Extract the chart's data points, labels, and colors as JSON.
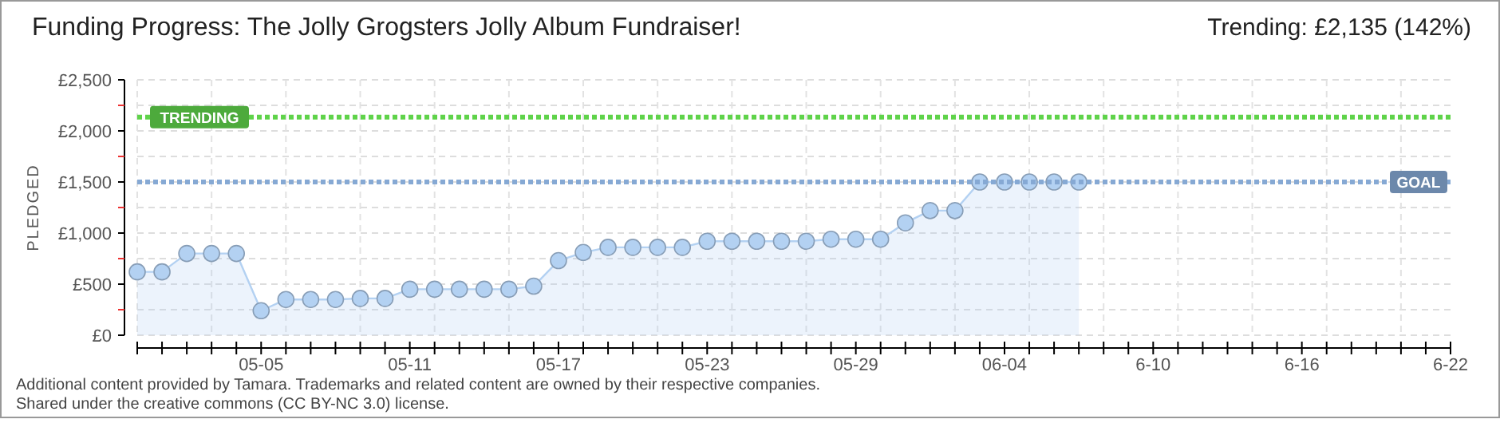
{
  "chart_data": {
    "type": "area",
    "title": "Funding Progress: The Jolly Grogsters Jolly Album Fundraiser!",
    "subtitle": "Trending:  £2,135 (142%)",
    "ylabel": "PLEDGED",
    "series": [
      {
        "color": "#b3d1f2",
        "x": [
          "--04-30",
          "--05-01",
          "--05-02",
          "--05-03",
          "--05-04",
          "--05-05",
          "--05-06",
          "--05-07",
          "--05-08",
          "--05-09",
          "--05-10",
          "--05-11",
          "--05-12",
          "--05-13",
          "--05-14",
          "--05-15",
          "--05-16",
          "--05-17",
          "--05-18",
          "--05-19",
          "--05-20",
          "--05-21",
          "--05-22",
          "--05-23",
          "--05-24",
          "--05-25",
          "--05-26",
          "--05-27",
          "--05-28",
          "--05-29",
          "--05-30",
          "--05-31",
          "--06-01",
          "--06-02",
          "--06-03",
          "--06-04",
          "--06-05",
          "--06-06",
          "--06-07"
        ],
        "values": [
          620,
          620,
          800,
          800,
          800,
          240,
          350,
          350,
          350,
          360,
          360,
          450,
          450,
          450,
          450,
          450,
          480,
          730,
          810,
          860,
          860,
          860,
          860,
          920,
          920,
          920,
          920,
          920,
          940,
          940,
          940,
          1100,
          1220,
          1220,
          1500,
          1500,
          1500,
          1500,
          1500
        ]
      }
    ],
    "marker": "circle",
    "grid": true,
    "xlim": [
      "--04-30",
      "--06-22"
    ],
    "xticks": [
      {
        "value": "--04-30",
        "label": null
      },
      {
        "value": "--05-01",
        "label": null
      },
      {
        "value": "--05-02",
        "label": null
      },
      {
        "value": "--05-03",
        "label": null
      },
      {
        "value": "--05-04",
        "label": null
      },
      {
        "value": "--05-05",
        "label": "05-05"
      },
      {
        "value": "--05-06",
        "label": null
      },
      {
        "value": "--05-07",
        "label": null
      },
      {
        "value": "--05-08",
        "label": null
      },
      {
        "value": "--05-09",
        "label": null
      },
      {
        "value": "--05-10",
        "label": null
      },
      {
        "value": "--05-11",
        "label": "05-11"
      },
      {
        "value": "--05-12",
        "label": null
      },
      {
        "value": "--05-13",
        "label": null
      },
      {
        "value": "--05-14",
        "label": null
      },
      {
        "value": "--05-15",
        "label": null
      },
      {
        "value": "--05-16",
        "label": null
      },
      {
        "value": "--05-17",
        "label": "05-17"
      },
      {
        "value": "--05-18",
        "label": null
      },
      {
        "value": "--05-19",
        "label": null
      },
      {
        "value": "--05-20",
        "label": null
      },
      {
        "value": "--05-21",
        "label": null
      },
      {
        "value": "--05-22",
        "label": null
      },
      {
        "value": "--05-23",
        "label": "05-23"
      },
      {
        "value": "--05-24",
        "label": null
      },
      {
        "value": "--05-25",
        "label": null
      },
      {
        "value": "--05-26",
        "label": null
      },
      {
        "value": "--05-27",
        "label": null
      },
      {
        "value": "--05-28",
        "label": null
      },
      {
        "value": "--05-29",
        "label": "05-29"
      },
      {
        "value": "--05-30",
        "label": null
      },
      {
        "value": "--05-31",
        "label": null
      },
      {
        "value": "--06-01",
        "label": null
      },
      {
        "value": "--06-02",
        "label": null
      },
      {
        "value": "--06-03",
        "label": null
      },
      {
        "value": "--06-04",
        "label": "06-04"
      },
      {
        "value": "--06-05",
        "label": null
      },
      {
        "value": "--06-06",
        "label": null
      },
      {
        "value": "--06-07",
        "label": null
      },
      {
        "value": "--06-08",
        "label": null
      },
      {
        "value": "--06-09",
        "label": null
      },
      {
        "value": "--06-10",
        "label": "6-10"
      },
      {
        "value": "--06-11",
        "label": null
      },
      {
        "value": "--06-12",
        "label": null
      },
      {
        "value": "--06-13",
        "label": null
      },
      {
        "value": "--06-14",
        "label": null
      },
      {
        "value": "--06-15",
        "label": null
      },
      {
        "value": "--06-16",
        "label": "6-16"
      },
      {
        "value": "--06-17",
        "label": null
      },
      {
        "value": "--06-18",
        "label": null
      },
      {
        "value": "--06-19",
        "label": null
      },
      {
        "value": "--06-20",
        "label": null
      },
      {
        "value": "--06-21",
        "label": null
      },
      {
        "value": "--06-22",
        "label": "6-22"
      }
    ],
    "ylim": [
      0,
      2500
    ],
    "yticks": [
      {
        "value": 0,
        "label": "£0"
      },
      {
        "value": 250,
        "label": null
      },
      {
        "value": 500,
        "label": "£500"
      },
      {
        "value": 750,
        "label": null
      },
      {
        "value": 1000,
        "label": "£1,000"
      },
      {
        "value": 1250,
        "label": null
      },
      {
        "value": 1500,
        "label": "£1,500"
      },
      {
        "value": 1750,
        "label": null
      },
      {
        "value": 2000,
        "label": "£2,000"
      },
      {
        "value": 2250,
        "label": null
      },
      {
        "value": 2500,
        "label": "£2,500"
      }
    ],
    "ref_lines": [
      {
        "axis": "y",
        "value": 2135,
        "label": "TRENDING",
        "color": "#5fd34a",
        "line_style": "dotted"
      },
      {
        "axis": "y",
        "value": 1500,
        "label": "GOAL",
        "color": "#86a9d4",
        "line_style": "dotted"
      }
    ],
    "annotations": [
      "Additional content provided by Tamara. Trademarks and related content are owned by their respective companies.",
      "Shared under the creative commons (CC BY-NC 3.0) license."
    ]
  }
}
